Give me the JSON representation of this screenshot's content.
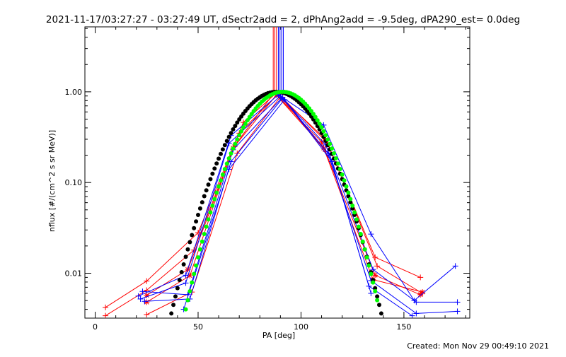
{
  "title": "2021-11-17/03:27:27 - 03:27:49 UT, dSectr2add = 2, dPhAng2add = -9.5deg, dPA290_est=  0.0deg",
  "footer": "Created: Mon Nov 29 00:49:10 2021",
  "colors": {
    "background": "#ffffff",
    "axes": "#000000",
    "red": "#ff0000",
    "blue": "#0000ff",
    "black": "#000000",
    "green": "#00ff00"
  },
  "chart_data": {
    "type": "line",
    "xlabel": "PA [deg]",
    "ylabel": "nflux [#/(cm^2 s sr MeV)]",
    "xlim": [
      -5,
      182
    ],
    "ylim": [
      0.0032,
      5.2
    ],
    "yscale": "log",
    "xticks": [
      0,
      50,
      100,
      150
    ],
    "xtick_labels": [
      "0",
      "50",
      "100",
      "150"
    ],
    "yticks": [
      0.01,
      0.1,
      1.0
    ],
    "ytick_labels": [
      "0.01",
      "0.10",
      "1.00"
    ],
    "vertical_lines": [
      {
        "color": "red",
        "x": [
          86.5,
          87.3,
          88.1
        ]
      },
      {
        "color": "blue",
        "x": [
          89.0,
          89.8,
          90.6,
          91.4
        ]
      }
    ],
    "series": [
      {
        "color": "red",
        "marker": "plus",
        "x": [
          5,
          25,
          50,
          72,
          88,
          112,
          136,
          158
        ],
        "y": [
          0.0042,
          0.0082,
          0.028,
          0.46,
          0.97,
          0.3,
          0.015,
          0.009
        ]
      },
      {
        "color": "red",
        "marker": "plus",
        "x": [
          5,
          25,
          48,
          70,
          89,
          113,
          137,
          159
        ],
        "y": [
          0.0034,
          0.0065,
          0.018,
          0.35,
          0.95,
          0.27,
          0.012,
          0.006
        ]
      },
      {
        "color": "red",
        "marker": "star",
        "x": [
          25,
          45,
          68,
          87,
          110,
          136,
          158
        ],
        "y": [
          0.0057,
          0.011,
          0.26,
          0.98,
          0.28,
          0.0095,
          0.0058
        ]
      },
      {
        "color": "red",
        "marker": "star",
        "x": [
          25,
          46,
          67,
          88,
          111,
          135,
          159
        ],
        "y": [
          0.0048,
          0.0094,
          0.24,
          0.92,
          0.24,
          0.0085,
          0.0062
        ]
      },
      {
        "color": "red",
        "marker": "plus",
        "x": [
          25,
          47,
          69,
          90,
          112
        ],
        "y": [
          0.0035,
          0.0062,
          0.21,
          0.88,
          0.22
        ]
      },
      {
        "color": "blue",
        "marker": "plus",
        "x": [
          21,
          44,
          66,
          89,
          111,
          134,
          155,
          175
        ],
        "y": [
          0.0056,
          0.0095,
          0.33,
          0.93,
          0.43,
          0.027,
          0.005,
          0.012
        ]
      },
      {
        "color": "blue",
        "marker": "plus",
        "x": [
          22,
          44,
          65,
          90,
          112,
          135,
          156,
          176
        ],
        "y": [
          0.0052,
          0.0078,
          0.27,
          0.9,
          0.26,
          0.011,
          0.0048,
          0.0048
        ]
      },
      {
        "color": "blue",
        "marker": "plus",
        "x": [
          23,
          45,
          67,
          91,
          113,
          134,
          156,
          176
        ],
        "y": [
          0.0063,
          0.0058,
          0.23,
          0.87,
          0.21,
          0.0083,
          0.0036,
          0.0038
        ]
      },
      {
        "color": "blue",
        "marker": "plus",
        "x": [
          24,
          46,
          66,
          91,
          114,
          133,
          154
        ],
        "y": [
          0.0049,
          0.0052,
          0.17,
          0.85,
          0.2,
          0.0072,
          0.0034
        ]
      },
      {
        "color": "blue",
        "marker": "plus",
        "x": [
          43,
          65,
          92,
          115,
          134
        ],
        "y": [
          0.004,
          0.14,
          0.82,
          0.17,
          0.006
        ]
      }
    ],
    "fits": [
      {
        "color": "black",
        "marker": "dot",
        "center": 88,
        "width": 21.5,
        "peak": 1.0,
        "x_range": [
          33,
          140
        ]
      },
      {
        "color": "green",
        "marker": "dot",
        "center": 91,
        "width": 20,
        "peak": 1.0,
        "x_range": [
          39,
          137
        ]
      }
    ]
  }
}
